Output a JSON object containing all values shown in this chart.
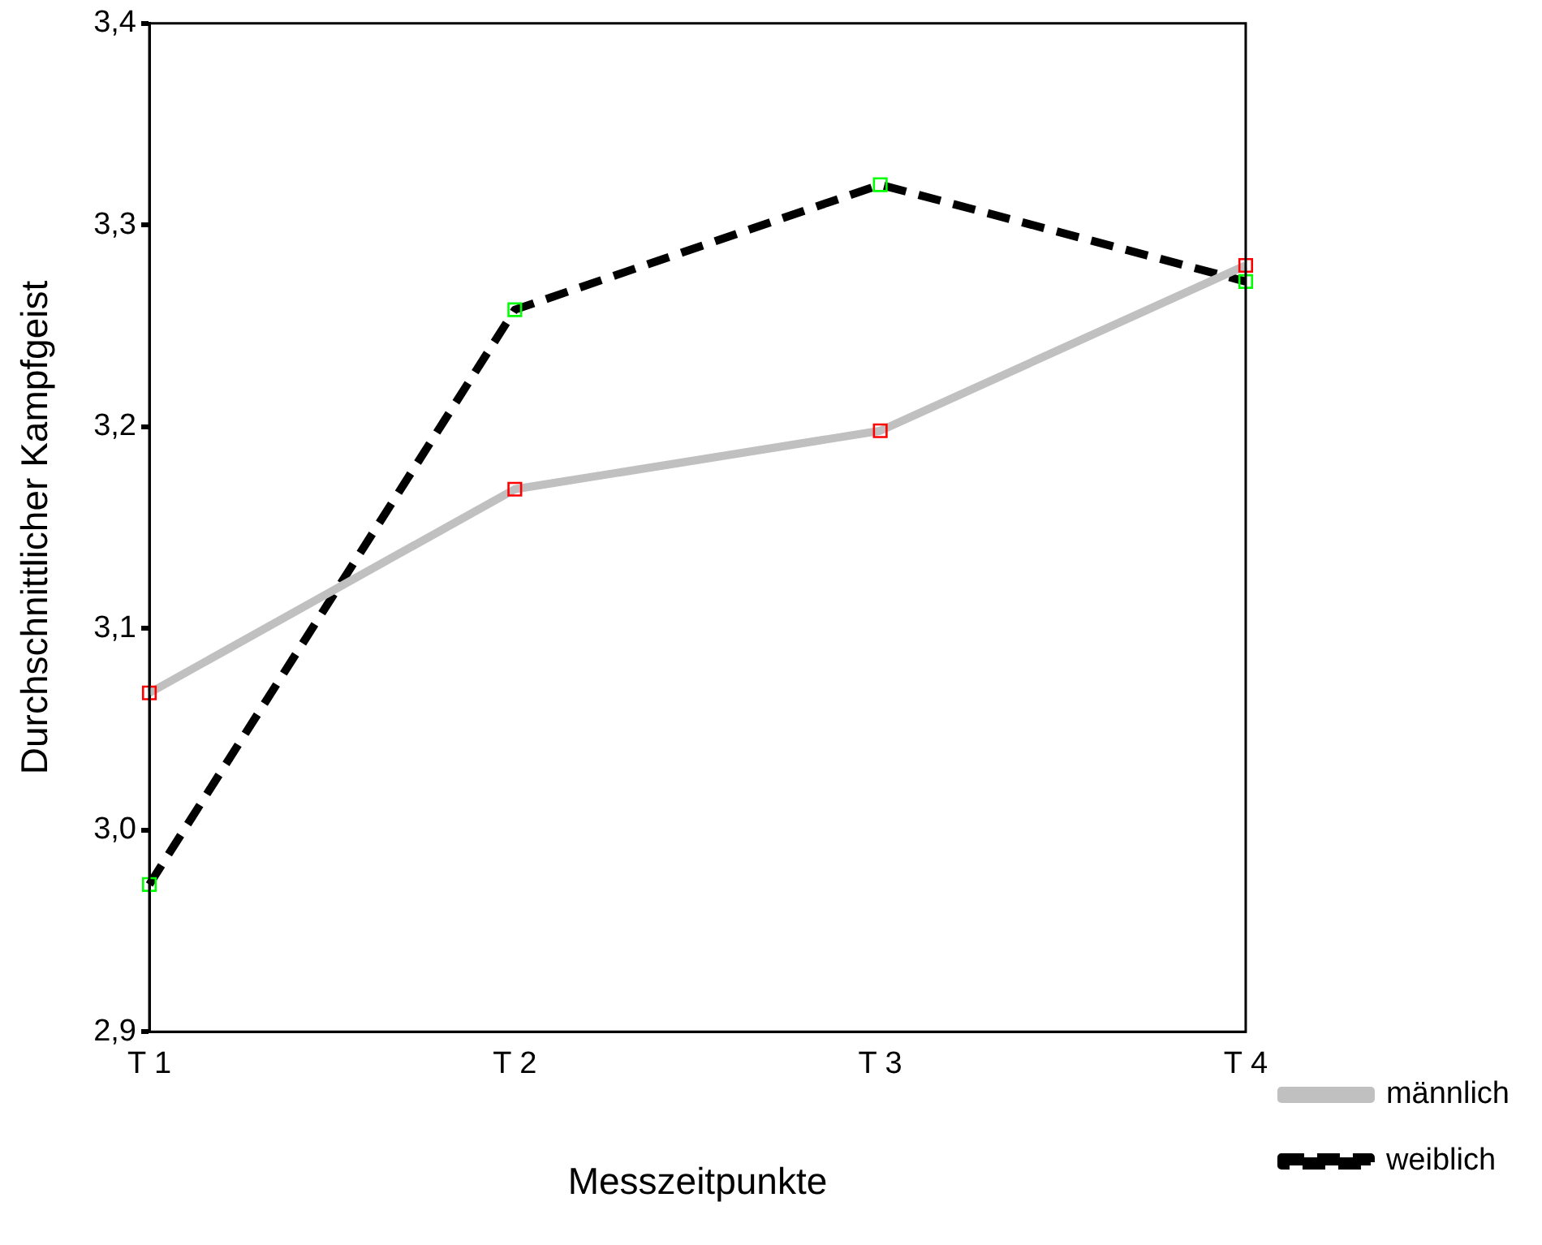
{
  "chart_data": {
    "type": "line",
    "xlabel": "Messzeitpunkte",
    "ylabel": "Durchschnittlicher Kampfgeist",
    "categories": [
      "T 1",
      "T 2",
      "T 3",
      "T 4"
    ],
    "series": [
      {
        "name": "männlich",
        "color": "#c0c0c0",
        "line_style": "solid",
        "colors": [
          "#ff0000",
          "#ff0000",
          "#ff0000",
          "#ff0000"
        ],
        "values": [
          3.068,
          3.169,
          3.198,
          3.28
        ]
      },
      {
        "name": "weiblich",
        "color": "#000000",
        "line_style": "dashed",
        "colors": [
          "#00ff00",
          "#00ff00",
          "#00ff00",
          "#00ff00"
        ],
        "values": [
          2.973,
          3.258,
          3.32,
          3.272
        ]
      }
    ],
    "ylim": [
      2.9,
      3.4
    ],
    "yticks": [
      {
        "value": 2.9,
        "label": "2,9"
      },
      {
        "value": 3.0,
        "label": "3,0"
      },
      {
        "value": 3.1,
        "label": "3,1"
      },
      {
        "value": 3.2,
        "label": "3,2"
      },
      {
        "value": 3.3,
        "label": "3,3"
      },
      {
        "value": 3.4,
        "label": "3,4"
      }
    ],
    "grid": false,
    "legend": "bottom right",
    "marker": "square"
  }
}
